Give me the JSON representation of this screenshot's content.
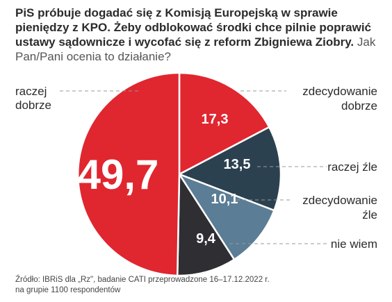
{
  "title": {
    "bold": "PiS próbuje dogadać się z Komisją Europejską w sprawie pieniędzy z KPO. Żeby odblokować  środki chce pilnie poprawić ustawy sądownicze i wycofać się z reform Zbigniewa Ziobry.",
    "question": "Jak Pan/Pani ocenia to działanie?"
  },
  "source": {
    "line1": "Źródło: IBRiS dla „Rz\", badanie CATI przeprowadzone 16–17.12.2022 r.",
    "line2": "na grupie 1100 respondentów"
  },
  "chart_data": {
    "type": "pie",
    "slices": [
      {
        "label": "raczej dobrze",
        "value": 49.7,
        "display": "49,7",
        "color": "#e0262f"
      },
      {
        "label": "zdecydowanie dobrze",
        "value": 17.3,
        "display": "17,3",
        "color": "#e0262f"
      },
      {
        "label": "raczej źle",
        "value": 13.5,
        "display": "13,5",
        "color": "#2c4150"
      },
      {
        "label": "zdecydowanie źle",
        "value": 10.1,
        "display": "10,1",
        "color": "#5b7d95"
      },
      {
        "label": "nie wiem",
        "value": 9.4,
        "display": "9,4",
        "color": "#2e2e33"
      }
    ],
    "labels": {
      "raczej_dobrze_1": "raczej",
      "raczej_dobrze_2": "dobrze",
      "zdec_dobrze_1": "zdecydowanie",
      "zdec_dobrze_2": "dobrze",
      "raczej_zle": "raczej źle",
      "zdec_zle_1": "zdecydowanie",
      "zdec_zle_2": "źle",
      "nie_wiem": "nie wiem"
    }
  }
}
